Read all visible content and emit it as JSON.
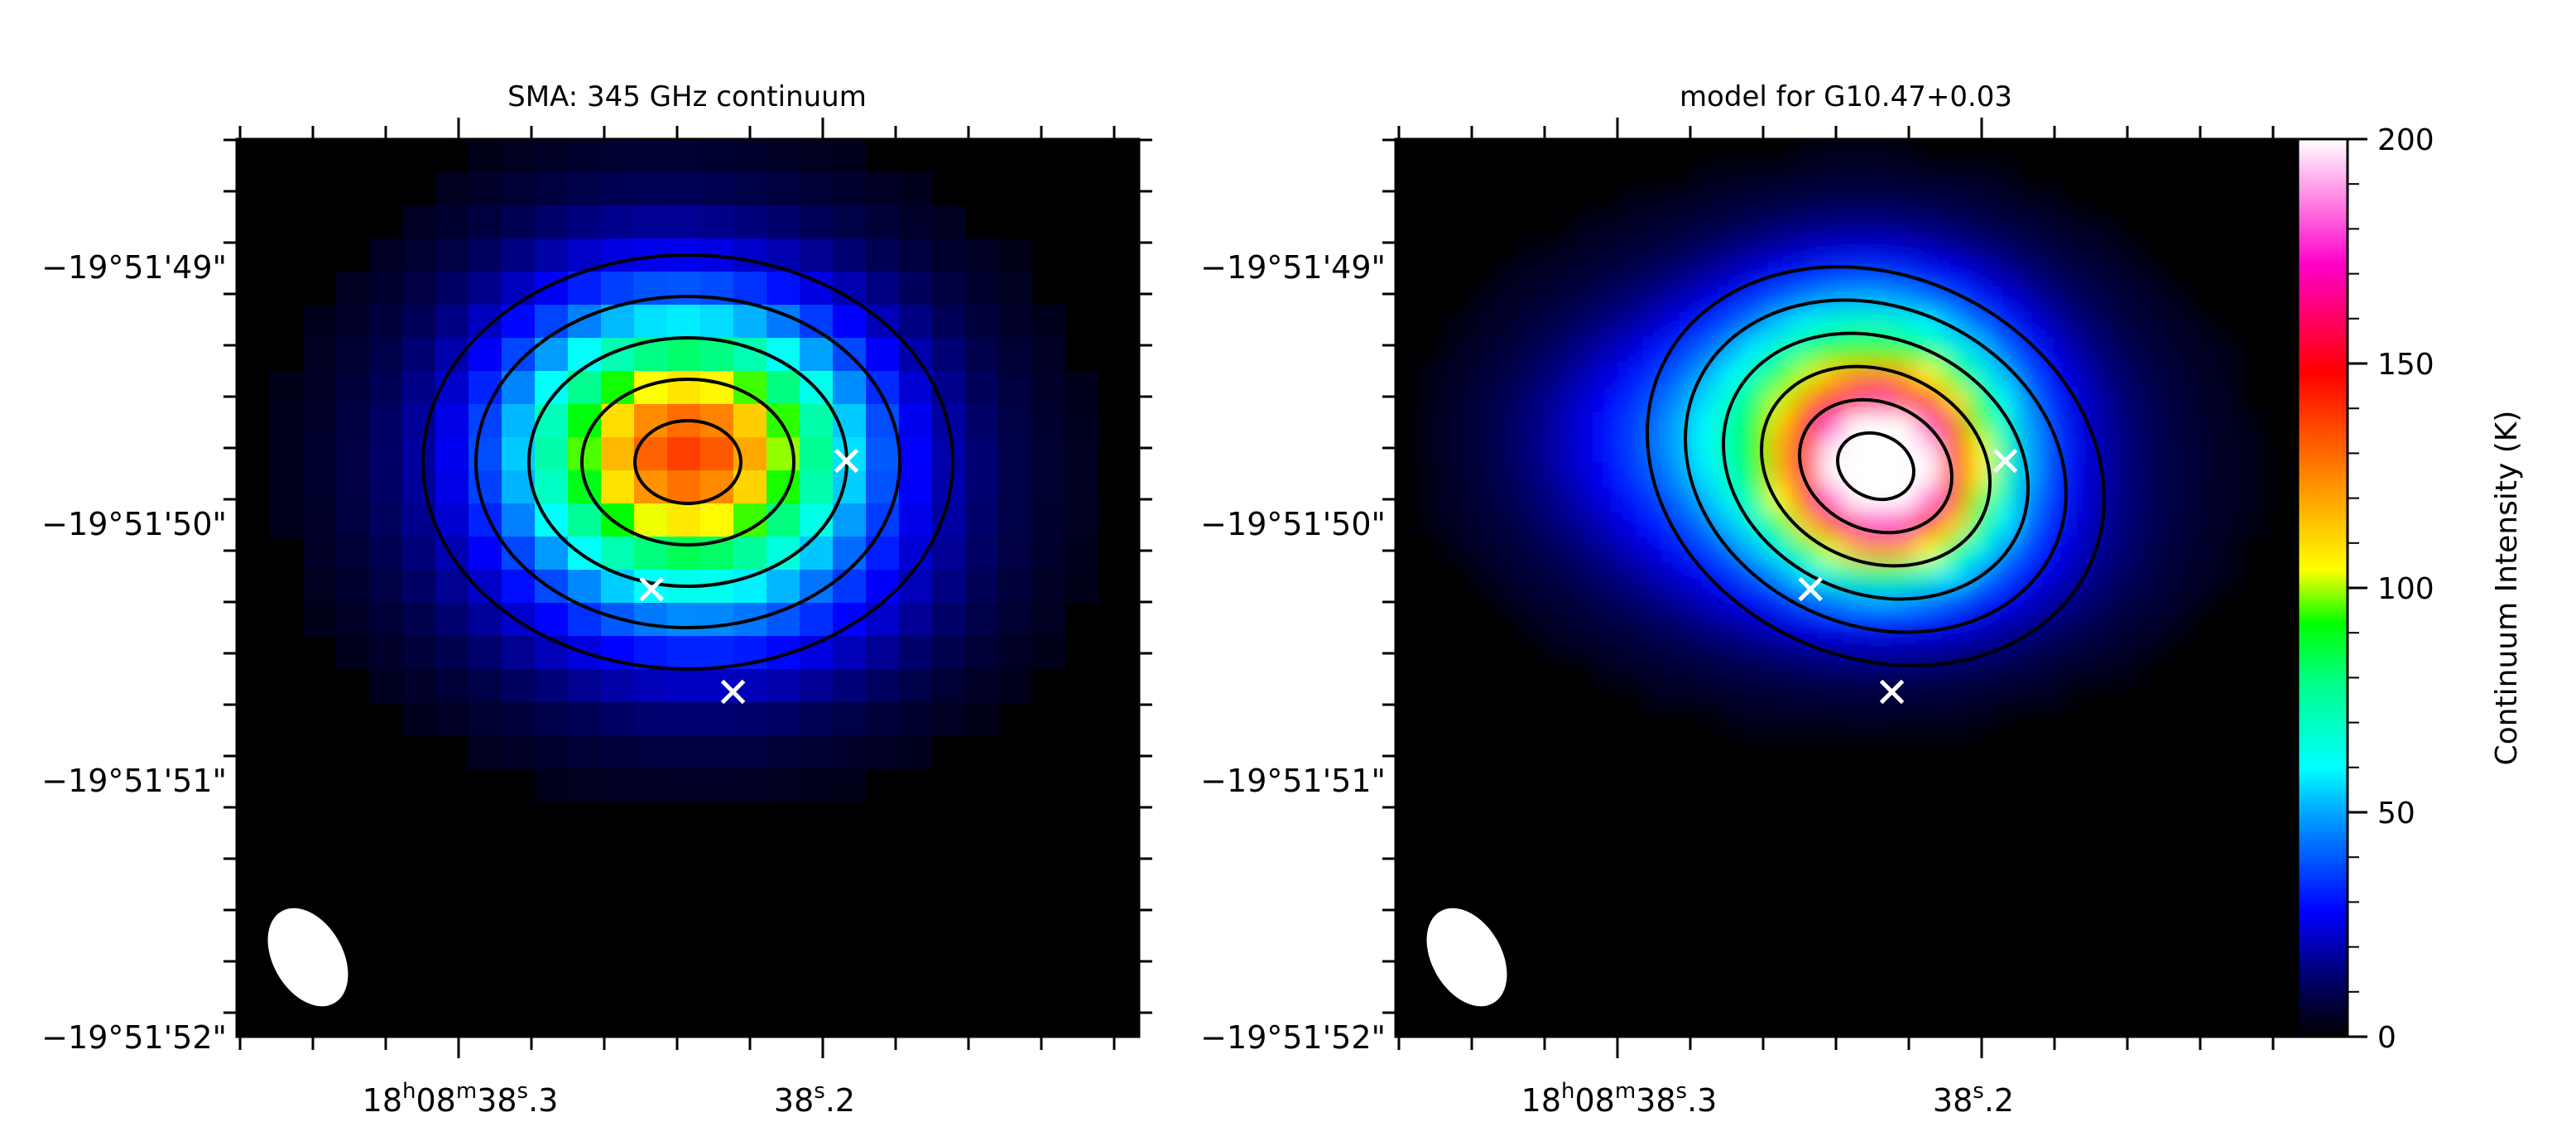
{
  "chart_data": [
    {
      "type": "heatmap",
      "title": "SMA: 345 GHz continuum",
      "x_axis": {
        "ticks": [
          {
            "label_parts": [
              "18",
              "h",
              "08",
              "m",
              "38",
              "s",
              ".3"
            ],
            "value": "18h08m38.3s"
          },
          {
            "label_parts": [
              "38",
              "s",
              ".2"
            ],
            "value": "38.2s"
          }
        ]
      },
      "y_axis": {
        "ticks": [
          "−19°51'49\"",
          "−19°51'50\"",
          "−19°51'51\"",
          "−19°51'52\""
        ]
      },
      "peak_intensity_K": 145,
      "markers": [
        {
          "ra": "18h08m38.246s",
          "dec": "-19:51:50.25",
          "symbol": "x"
        },
        {
          "ra": "18h08m38.223s",
          "dec": "-19:51:50.65",
          "symbol": "x"
        },
        {
          "ra": "18h08m38.191s",
          "dec": "-19:51:49.75",
          "symbol": "x"
        }
      ],
      "beam": {
        "major_arcsec": 0.55,
        "minor_arcsec": 0.38,
        "pa_deg": 30
      },
      "contours": 5,
      "colormap": "rainbow",
      "pixelated": true
    },
    {
      "type": "heatmap",
      "title": "model for G10.47+0.03",
      "x_axis": {
        "ticks": [
          {
            "label_parts": [
              "18",
              "h",
              "08",
              "m",
              "38",
              "s",
              ".3"
            ],
            "value": "18h08m38.3s"
          },
          {
            "label_parts": [
              "38",
              "s",
              ".2"
            ],
            "value": "38.2s"
          }
        ]
      },
      "y_axis": {
        "ticks": [
          "−19°51'49\"",
          "−19°51'50\"",
          "−19°51'51\"",
          "−19°51'52\""
        ]
      },
      "peak_intensity_K": 200,
      "markers": [
        {
          "ra": "18h08m38.246s",
          "dec": "-19:51:50.25",
          "symbol": "x"
        },
        {
          "ra": "18h08m38.223s",
          "dec": "-19:51:50.65",
          "symbol": "x"
        },
        {
          "ra": "18h08m38.191s",
          "dec": "-19:51:49.75",
          "symbol": "x"
        }
      ],
      "beam": {
        "major_arcsec": 0.55,
        "minor_arcsec": 0.38,
        "pa_deg": 30
      },
      "contours": 6,
      "colormap": "rainbow",
      "pixelated": false
    }
  ],
  "colorbar": {
    "label": "Continuum Intensity (K)",
    "min": 0,
    "max": 200,
    "ticks": [
      "0",
      "50",
      "100",
      "150",
      "200"
    ],
    "tick_values": [
      0,
      50,
      100,
      150,
      200
    ]
  }
}
